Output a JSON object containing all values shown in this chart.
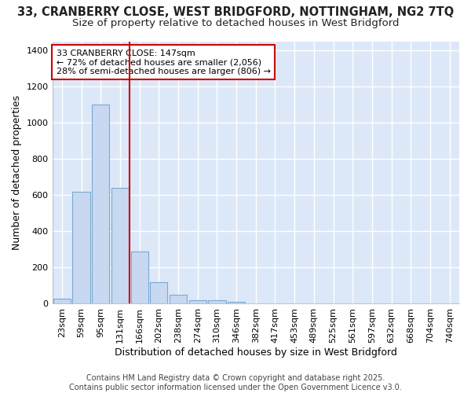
{
  "title_line1": "33, CRANBERRY CLOSE, WEST BRIDGFORD, NOTTINGHAM, NG2 7TQ",
  "title_line2": "Size of property relative to detached houses in West Bridgford",
  "xlabel": "Distribution of detached houses by size in West Bridgford",
  "ylabel": "Number of detached properties",
  "categories": [
    "23sqm",
    "59sqm",
    "95sqm",
    "131sqm",
    "166sqm",
    "202sqm",
    "238sqm",
    "274sqm",
    "310sqm",
    "346sqm",
    "382sqm",
    "417sqm",
    "453sqm",
    "489sqm",
    "525sqm",
    "561sqm",
    "597sqm",
    "632sqm",
    "668sqm",
    "704sqm",
    "740sqm"
  ],
  "values": [
    30,
    620,
    1100,
    640,
    290,
    120,
    50,
    20,
    20,
    10,
    0,
    0,
    0,
    0,
    0,
    0,
    0,
    0,
    0,
    0,
    0
  ],
  "bar_color": "#c8d8f0",
  "bar_edge_color": "#7aaad0",
  "vline_x": 3.5,
  "vline_color": "#cc0000",
  "annotation_text": "33 CRANBERRY CLOSE: 147sqm\n← 72% of detached houses are smaller (2,056)\n28% of semi-detached houses are larger (806) →",
  "annotation_box_color": "white",
  "annotation_box_edge": "#cc0000",
  "ylim": [
    0,
    1450
  ],
  "yticks": [
    0,
    200,
    400,
    600,
    800,
    1000,
    1200,
    1400
  ],
  "fig_bg_color": "#ffffff",
  "plot_bg_color": "#dce8f8",
  "grid_color": "#ffffff",
  "footnote": "Contains HM Land Registry data © Crown copyright and database right 2025.\nContains public sector information licensed under the Open Government Licence v3.0.",
  "title_fontsize": 10.5,
  "subtitle_fontsize": 9.5,
  "axis_label_fontsize": 9,
  "tick_fontsize": 8,
  "annotation_fontsize": 8,
  "footnote_fontsize": 7
}
